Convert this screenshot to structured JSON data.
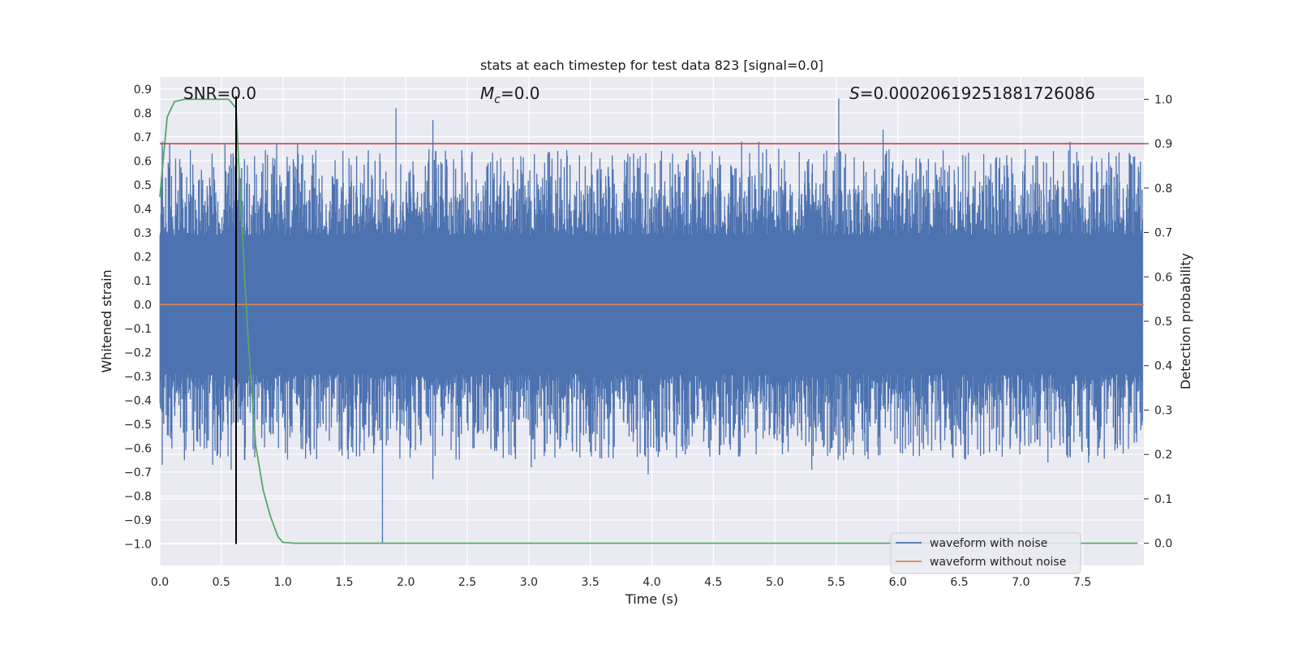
{
  "chart_data": {
    "type": "line",
    "title": "stats at each timestep for test data 823 [signal=0.0]",
    "xlabel": "Time (s)",
    "ylabel": "Whitened strain",
    "y2label": "Detection probability",
    "xlim": [
      0.0,
      8.0
    ],
    "ylim": [
      -1.09,
      0.95
    ],
    "y2lim": [
      -0.05,
      1.05
    ],
    "xticks": [
      0.0,
      0.5,
      1.0,
      1.5,
      2.0,
      2.5,
      3.0,
      3.5,
      4.0,
      4.5,
      5.0,
      5.5,
      6.0,
      6.5,
      7.0,
      7.5
    ],
    "xtick_labels": [
      "0.0",
      "0.5",
      "1.0",
      "1.5",
      "2.0",
      "2.5",
      "3.0",
      "3.5",
      "4.0",
      "4.5",
      "5.0",
      "5.5",
      "6.0",
      "6.5",
      "7.0",
      "7.5"
    ],
    "yticks": [
      0.9,
      0.8,
      0.7,
      0.6,
      0.5,
      0.4,
      0.3,
      0.2,
      0.1,
      0.0,
      -0.1,
      -0.2,
      -0.3,
      -0.4,
      -0.5,
      -0.6,
      -0.7,
      -0.8,
      -0.9,
      -1.0
    ],
    "ytick_labels": [
      "0.9",
      "0.8",
      "0.7",
      "0.6",
      "0.5",
      "0.4",
      "0.3",
      "0.2",
      "0.1",
      "0.0",
      "−0.1",
      "−0.2",
      "−0.3",
      "−0.4",
      "−0.5",
      "−0.6",
      "−0.7",
      "−0.8",
      "−0.9",
      "−1.0"
    ],
    "y2ticks": [
      1.0,
      0.9,
      0.8,
      0.7,
      0.6,
      0.5,
      0.4,
      0.3,
      0.2,
      0.1,
      0.0
    ],
    "y2tick_labels": [
      "1.0",
      "0.9",
      "0.8",
      "0.7",
      "0.6",
      "0.5",
      "0.4",
      "0.3",
      "0.2",
      "0.1",
      "0.0"
    ],
    "grid": true,
    "annotations": {
      "snr": "SNR=0.0",
      "mc": "M",
      "mc_sub": "c",
      "mc_value": "=0.0",
      "s": "S",
      "s_value": "=0.00020619251881726086"
    },
    "series": [
      {
        "name": "waveform with noise",
        "axis": "left",
        "color": "#4c72b0",
        "style": "noise-band",
        "band_upper": 0.27,
        "band_lower": -0.27,
        "notable_peaks": [
          [
            0.02,
            0.68
          ],
          [
            0.08,
            0.67
          ],
          [
            0.18,
            0.55
          ],
          [
            0.53,
            0.67
          ],
          [
            0.62,
            0.8
          ],
          [
            0.77,
            0.62
          ],
          [
            0.95,
            0.67
          ],
          [
            1.12,
            0.67
          ],
          [
            1.6,
            0.62
          ],
          [
            1.75,
            0.6
          ],
          [
            1.92,
            0.82
          ],
          [
            2.22,
            0.77
          ],
          [
            3.68,
            0.55
          ],
          [
            4.55,
            0.62
          ],
          [
            4.73,
            0.68
          ],
          [
            4.87,
            0.68
          ],
          [
            5.52,
            0.86
          ],
          [
            5.88,
            0.73
          ],
          [
            6.55,
            0.62
          ],
          [
            7.4,
            0.68
          ],
          [
            7.97,
            0.55
          ]
        ],
        "notable_troughs": [
          [
            0.02,
            -0.67
          ],
          [
            0.2,
            -0.65
          ],
          [
            0.3,
            -0.57
          ],
          [
            0.43,
            -0.67
          ],
          [
            0.58,
            -0.69
          ],
          [
            1.22,
            -0.61
          ],
          [
            1.81,
            -1.0
          ],
          [
            2.04,
            -0.6
          ],
          [
            2.22,
            -0.73
          ],
          [
            3.02,
            -0.68
          ],
          [
            3.97,
            -0.71
          ],
          [
            4.2,
            -0.64
          ],
          [
            5.3,
            -0.69
          ],
          [
            6.02,
            -0.62
          ],
          [
            7.22,
            -0.66
          ],
          [
            7.55,
            -0.66
          ]
        ]
      },
      {
        "name": "waveform without noise",
        "axis": "left",
        "color": "#dd8452",
        "x": [
          0.0,
          8.0
        ],
        "y": [
          0.0,
          0.0
        ]
      },
      {
        "name": "detection probability",
        "axis": "right",
        "color": "#55a868",
        "x": [
          0.0,
          0.06,
          0.12,
          0.2,
          0.3,
          0.4,
          0.5,
          0.56,
          0.62,
          0.66,
          0.72,
          0.78,
          0.84,
          0.9,
          0.96,
          1.0,
          1.1,
          1.5,
          2.0,
          3.0,
          4.0,
          5.0,
          6.0,
          7.0,
          7.95
        ],
        "y": [
          0.78,
          0.96,
          0.995,
          1.0,
          1.0,
          1.0,
          1.0,
          1.0,
          0.98,
          0.75,
          0.45,
          0.22,
          0.12,
          0.06,
          0.015,
          0.002,
          0.0,
          0.0,
          0.0,
          0.0,
          0.0,
          0.0,
          0.0,
          0.0,
          0.0
        ]
      },
      {
        "name": "threshold",
        "axis": "right",
        "color": "#c44e52",
        "x": [
          0.0,
          8.0
        ],
        "y": [
          0.9,
          0.9
        ]
      },
      {
        "name": "detection time",
        "axis": "left",
        "color": "#000000",
        "x": [
          0.62,
          0.62
        ],
        "y": [
          -1.0,
          0.87
        ]
      }
    ],
    "legend": {
      "placement": "bottom-right",
      "entries": [
        {
          "label": "waveform with noise",
          "color": "#4c72b0"
        },
        {
          "label": "waveform without noise",
          "color": "#dd8452"
        }
      ]
    },
    "colors": {
      "plot_background": "#eaeaf2",
      "grid": "#ffffff",
      "text": "#262626"
    }
  }
}
